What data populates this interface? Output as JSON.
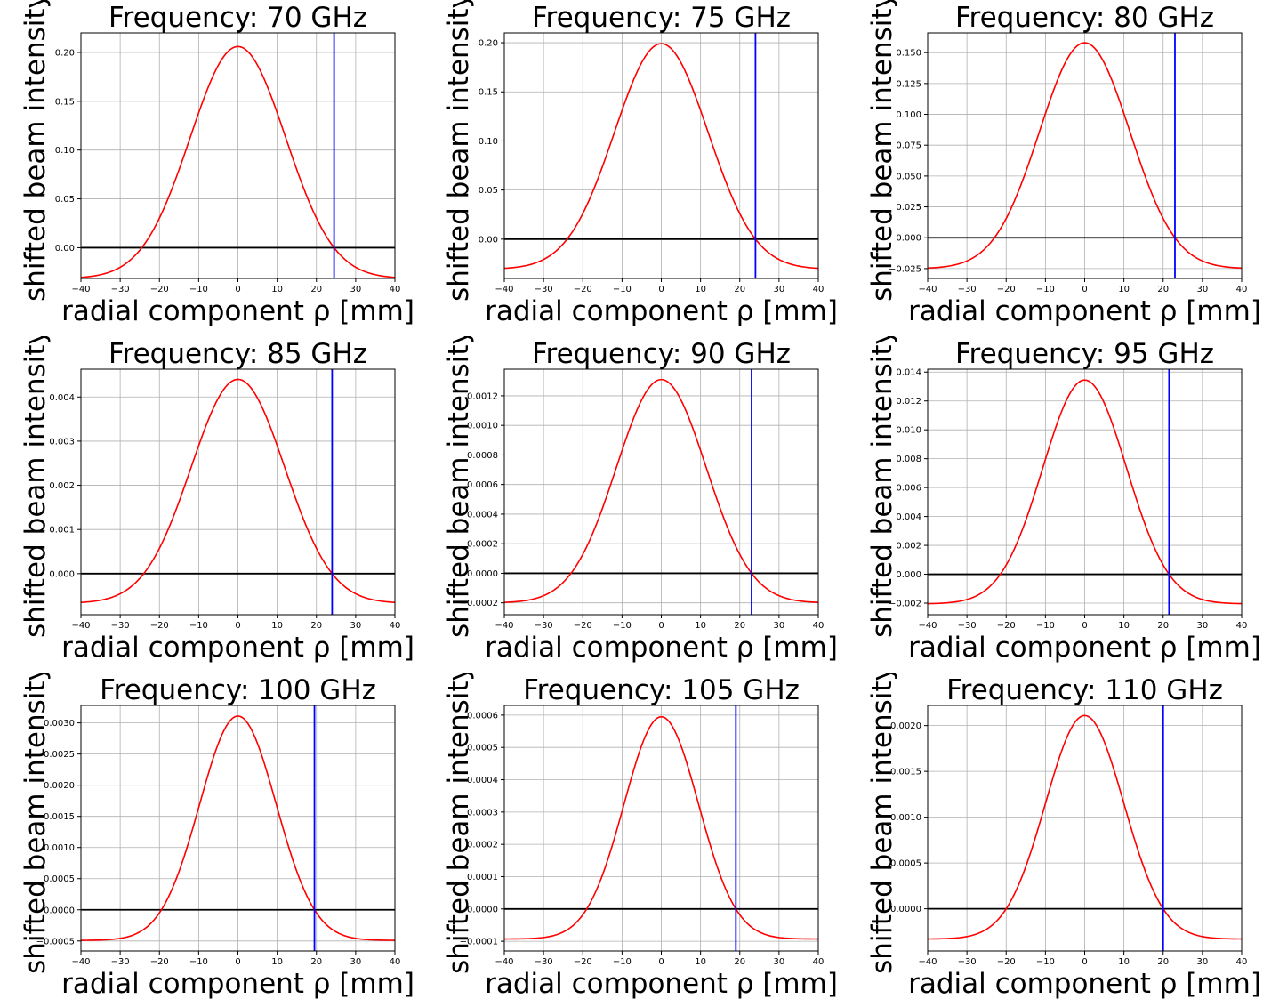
{
  "figure": {
    "background": "#ffffff",
    "curve_color": "#ff0000",
    "marker_color": "#0000ff",
    "zero_line_color": "#000000",
    "grid_color": "#b0b0b0"
  },
  "chart_data": [
    {
      "type": "line",
      "title": "Frequency: 70 GHz",
      "xlabel": "radial component ρ [mm]",
      "ylabel": "shifted beam intensity",
      "xlim": [
        -40,
        40
      ],
      "ylim": [
        -0.0315,
        0.22
      ],
      "xticks": [
        -40,
        -30,
        -20,
        -10,
        0,
        10,
        20,
        30,
        40
      ],
      "xtick_labels": [
        "−40",
        "−30",
        "−20",
        "−10",
        "0",
        "10",
        "20",
        "30",
        "40"
      ],
      "yticks": [
        0.0,
        0.05,
        0.1,
        0.15,
        0.2
      ],
      "ytick_labels": [
        "0.00",
        "0.05",
        "0.10",
        "0.15",
        "0.20"
      ],
      "grid": true,
      "series": [
        {
          "kind": "shifted-gaussian",
          "peak": 0.206,
          "floor": -0.0315,
          "zero_crossing": 24.5,
          "color": "#ff0000"
        }
      ],
      "vertical_line_x": 24.5,
      "horizontal_line_y": 0
    },
    {
      "type": "line",
      "title": "Frequency: 75 GHz",
      "xlabel": "radial component ρ [mm]",
      "ylabel": "shifted beam intensity",
      "xlim": [
        -40,
        40
      ],
      "ylim": [
        -0.04,
        0.21
      ],
      "xticks": [
        -40,
        -30,
        -20,
        -10,
        0,
        10,
        20,
        30,
        40
      ],
      "xtick_labels": [
        "−40",
        "−30",
        "−20",
        "−10",
        "0",
        "10",
        "20",
        "30",
        "40"
      ],
      "yticks": [
        0.0,
        0.05,
        0.1,
        0.15,
        0.2
      ],
      "ytick_labels": [
        "0.00",
        "0.05",
        "0.10",
        "0.15",
        "0.20"
      ],
      "grid": true,
      "series": [
        {
          "kind": "shifted-gaussian",
          "peak": 0.199,
          "floor": -0.0305,
          "zero_crossing": 24.0,
          "color": "#ff0000"
        }
      ],
      "vertical_line_x": 24.0,
      "horizontal_line_y": 0
    },
    {
      "type": "line",
      "title": "Frequency: 80 GHz",
      "xlabel": "radial component ρ [mm]",
      "ylabel": "shifted beam intensity",
      "xlim": [
        -40,
        40
      ],
      "ylim": [
        -0.033,
        0.166
      ],
      "xticks": [
        -40,
        -30,
        -20,
        -10,
        0,
        10,
        20,
        30,
        40
      ],
      "xtick_labels": [
        "−40",
        "−30",
        "−20",
        "−10",
        "0",
        "10",
        "20",
        "30",
        "40"
      ],
      "yticks": [
        -0.025,
        0.0,
        0.025,
        0.05,
        0.075,
        0.1,
        0.125,
        0.15
      ],
      "ytick_labels": [
        "−0.025",
        "0.000",
        "0.025",
        "0.050",
        "0.075",
        "0.100",
        "0.125",
        "0.150"
      ],
      "grid": true,
      "series": [
        {
          "kind": "shifted-gaussian",
          "peak": 0.158,
          "floor": -0.025,
          "zero_crossing": 23.0,
          "color": "#ff0000"
        }
      ],
      "vertical_line_x": 23.0,
      "horizontal_line_y": 0
    },
    {
      "type": "line",
      "title": "Frequency: 85 GHz",
      "xlabel": "radial component ρ [mm]",
      "ylabel": "shifted beam intensity",
      "xlim": [
        -40,
        40
      ],
      "ylim": [
        -0.00093,
        0.00463
      ],
      "xticks": [
        -40,
        -30,
        -20,
        -10,
        0,
        10,
        20,
        30,
        40
      ],
      "xtick_labels": [
        "−40",
        "−30",
        "−20",
        "−10",
        "0",
        "10",
        "20",
        "30",
        "40"
      ],
      "yticks": [
        0.0,
        0.001,
        0.002,
        0.003,
        0.004
      ],
      "ytick_labels": [
        "0.000",
        "0.001",
        "0.002",
        "0.003",
        "0.004"
      ],
      "grid": true,
      "series": [
        {
          "kind": "shifted-gaussian",
          "peak": 0.0044,
          "floor": -0.00067,
          "zero_crossing": 24.0,
          "color": "#ff0000"
        }
      ],
      "vertical_line_x": 24.0,
      "horizontal_line_y": 0
    },
    {
      "type": "line",
      "title": "Frequency: 90 GHz",
      "xlabel": "radial component ρ [mm]",
      "ylabel": "shifted beam intensity",
      "xlim": [
        -40,
        40
      ],
      "ylim": [
        -0.00028,
        0.00138
      ],
      "xticks": [
        -40,
        -30,
        -20,
        -10,
        0,
        10,
        20,
        30,
        40
      ],
      "xtick_labels": [
        "−40",
        "−30",
        "−20",
        "−10",
        "0",
        "10",
        "20",
        "30",
        "40"
      ],
      "yticks": [
        -0.0002,
        0.0,
        0.0002,
        0.0004,
        0.0006,
        0.0008,
        0.001,
        0.0012
      ],
      "ytick_labels": [
        "−0.0002",
        "0.0000",
        "0.0002",
        "0.0004",
        "0.0006",
        "0.0008",
        "0.0010",
        "0.0012"
      ],
      "grid": true,
      "series": [
        {
          "kind": "shifted-gaussian",
          "peak": 0.00131,
          "floor": -0.0002,
          "zero_crossing": 23.0,
          "color": "#ff0000"
        }
      ],
      "vertical_line_x": 23.0,
      "horizontal_line_y": 0
    },
    {
      "type": "line",
      "title": "Frequency: 95 GHz",
      "xlabel": "radial component ρ [mm]",
      "ylabel": "shifted beam intensity",
      "xlim": [
        -40,
        40
      ],
      "ylim": [
        -0.0028,
        0.0142
      ],
      "xticks": [
        -40,
        -30,
        -20,
        -10,
        0,
        10,
        20,
        30,
        40
      ],
      "xtick_labels": [
        "−40",
        "−30",
        "−20",
        "−10",
        "0",
        "10",
        "20",
        "30",
        "40"
      ],
      "yticks": [
        -0.002,
        0.0,
        0.002,
        0.004,
        0.006,
        0.008,
        0.01,
        0.012,
        0.014
      ],
      "ytick_labels": [
        "−0.002",
        "0.000",
        "0.002",
        "0.004",
        "0.006",
        "0.008",
        "0.010",
        "0.012",
        "0.014"
      ],
      "grid": true,
      "series": [
        {
          "kind": "shifted-gaussian",
          "peak": 0.01345,
          "floor": -0.00205,
          "zero_crossing": 21.5,
          "color": "#ff0000"
        }
      ],
      "vertical_line_x": 21.5,
      "horizontal_line_y": 0
    },
    {
      "type": "line",
      "title": "Frequency: 100 GHz",
      "xlabel": "radial component ρ [mm]",
      "ylabel": "shifted beam intensity",
      "xlim": [
        -40,
        40
      ],
      "ylim": [
        -0.00066,
        0.00328
      ],
      "xticks": [
        -40,
        -30,
        -20,
        -10,
        0,
        10,
        20,
        30,
        40
      ],
      "xtick_labels": [
        "−40",
        "−30",
        "−20",
        "−10",
        "0",
        "10",
        "20",
        "30",
        "40"
      ],
      "yticks": [
        -0.0005,
        0.0,
        0.0005,
        0.001,
        0.0015,
        0.002,
        0.0025,
        0.003
      ],
      "ytick_labels": [
        "−0.0005",
        "0.0000",
        "0.0005",
        "0.0010",
        "0.0015",
        "0.0020",
        "0.0025",
        "0.0030"
      ],
      "grid": true,
      "series": [
        {
          "kind": "shifted-gaussian",
          "peak": 0.00311,
          "floor": -0.00049,
          "zero_crossing": 19.5,
          "color": "#ff0000"
        }
      ],
      "vertical_line_x": 19.5,
      "horizontal_line_y": 0
    },
    {
      "type": "line",
      "title": "Frequency: 105 GHz",
      "xlabel": "radial component ρ [mm]",
      "ylabel": "shifted beam intensity",
      "xlim": [
        -40,
        40
      ],
      "ylim": [
        -0.00013,
        0.00063
      ],
      "xticks": [
        -40,
        -30,
        -20,
        -10,
        0,
        10,
        20,
        30,
        40
      ],
      "xtick_labels": [
        "−40",
        "−30",
        "−20",
        "−10",
        "0",
        "10",
        "20",
        "30",
        "40"
      ],
      "yticks": [
        -0.0001,
        0.0,
        0.0001,
        0.0002,
        0.0003,
        0.0004,
        0.0005,
        0.0006
      ],
      "ytick_labels": [
        "−0.0001",
        "0.0000",
        "0.0001",
        "0.0002",
        "0.0003",
        "0.0004",
        "0.0005",
        "0.0006"
      ],
      "grid": true,
      "series": [
        {
          "kind": "shifted-gaussian",
          "peak": 0.000595,
          "floor": -9.3e-05,
          "zero_crossing": 19.0,
          "color": "#ff0000"
        }
      ],
      "vertical_line_x": 19.0,
      "horizontal_line_y": 0
    },
    {
      "type": "line",
      "title": "Frequency: 110 GHz",
      "xlabel": "radial component ρ [mm]",
      "ylabel": "shifted beam intensity",
      "xlim": [
        -40,
        40
      ],
      "ylim": [
        -0.00046,
        0.00222
      ],
      "xticks": [
        -40,
        -30,
        -20,
        -10,
        0,
        10,
        20,
        30,
        40
      ],
      "xtick_labels": [
        "−40",
        "−30",
        "−20",
        "−10",
        "0",
        "10",
        "20",
        "30",
        "40"
      ],
      "yticks": [
        0.0,
        0.0005,
        0.001,
        0.0015,
        0.002
      ],
      "ytick_labels": [
        "0.0000",
        "0.0005",
        "0.0010",
        "0.0015",
        "0.0020"
      ],
      "grid": true,
      "series": [
        {
          "kind": "shifted-gaussian",
          "peak": 0.00211,
          "floor": -0.00033,
          "zero_crossing": 20.0,
          "color": "#ff0000"
        }
      ],
      "vertical_line_x": 20.0,
      "horizontal_line_y": 0
    }
  ]
}
